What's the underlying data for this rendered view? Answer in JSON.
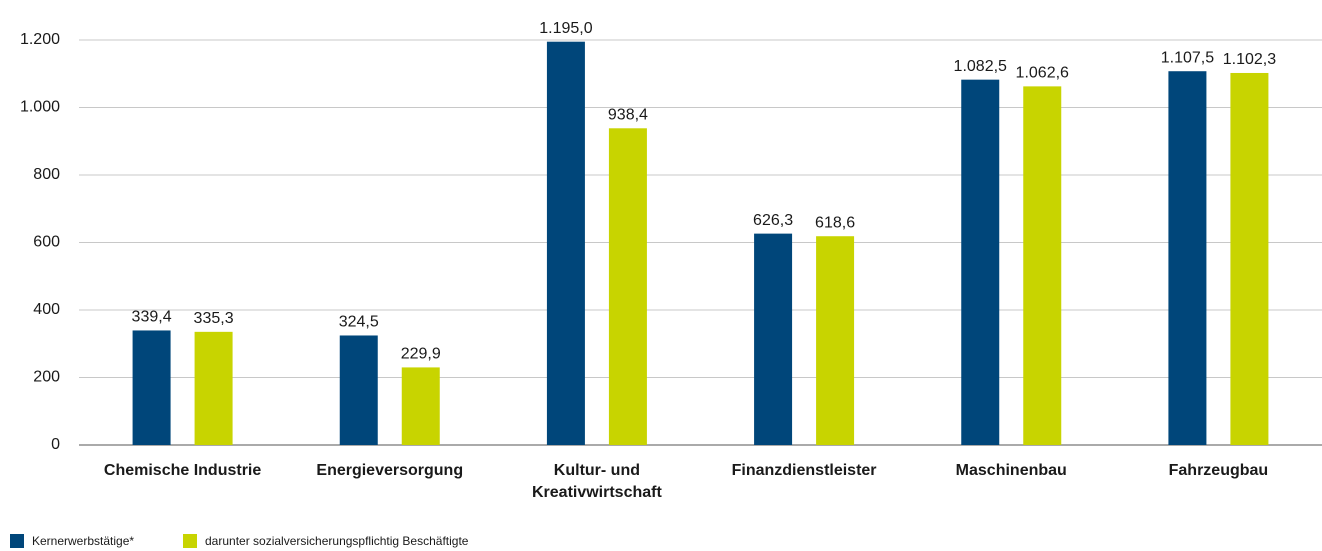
{
  "chart_data": {
    "type": "bar",
    "categories": [
      "Chemische Industrie",
      "Energieversorgung",
      "Kultur- und Kreativwirtschaft",
      "Finanzdienstleister",
      "Maschinenbau",
      "Fahrzeugbau"
    ],
    "series": [
      {
        "name": "Kernerwerbstätige*",
        "color": "#00467a",
        "values": [
          339.4,
          324.5,
          1195.0,
          626.3,
          1082.5,
          1107.5
        ],
        "value_labels": [
          "339,4",
          "324,5",
          "1.195,0",
          "626,3",
          "1.082,5",
          "1.107,5"
        ]
      },
      {
        "name": "darunter sozialversicherungspflichtig Beschäftigte",
        "color": "#c8d400",
        "values": [
          335.3,
          229.9,
          938.4,
          618.6,
          1062.6,
          1102.3
        ],
        "value_labels": [
          "335,3",
          "229,9",
          "938,4",
          "618,6",
          "1.062,6",
          "1.102,3"
        ]
      }
    ],
    "ylim": [
      0,
      1200
    ],
    "yticks": [
      0,
      200,
      400,
      600,
      800,
      {
        "value": 1000,
        "label": "1.000"
      },
      {
        "value": 1200,
        "label": "1.200"
      }
    ],
    "grid": true
  }
}
